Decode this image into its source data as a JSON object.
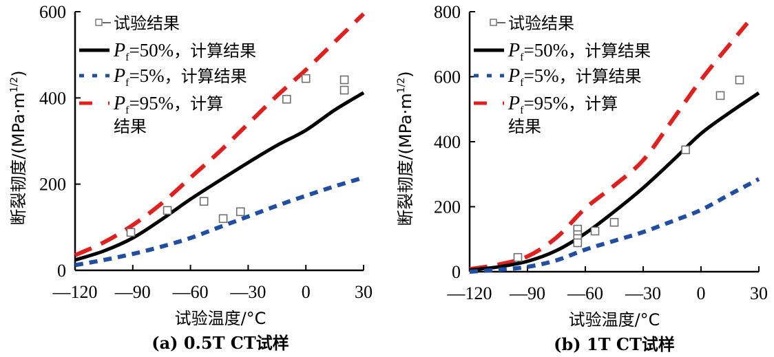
{
  "colors": {
    "p50": "#000000",
    "p5": "#1f4ea3",
    "p95": "#e0201e",
    "marker": "#6e6e6e"
  },
  "chart_data": [
    {
      "type": "line",
      "panel": "a",
      "caption": "(a) 0.5T CT试样",
      "xlabel": "试验温度/°C",
      "ylabel": "断裂韧度/(MPa·m",
      "ylabel_sup": "1/2",
      "ylabel_close": ")",
      "xlim": [
        -120,
        30
      ],
      "ylim": [
        0,
        600
      ],
      "xticks": [
        -120,
        -90,
        -60,
        -30,
        0,
        30
      ],
      "xtick_labels": [
        "—120",
        "—90",
        "—60",
        "—30",
        "0",
        "30"
      ],
      "yticks": [
        0,
        200,
        400,
        600
      ],
      "ytick_labels": [
        "0",
        "200",
        "400",
        "600"
      ],
      "grid": false,
      "legend_position": "top-left",
      "legend": [
        {
          "key": "test",
          "text": "试验结果"
        },
        {
          "key": "p50",
          "prefix": "P",
          "sub": "f",
          "value": "=50%",
          "text": "，计算结果"
        },
        {
          "key": "p5",
          "prefix": "P",
          "sub": "f",
          "value": "=5%",
          "text": "，计算结果"
        },
        {
          "key": "p95",
          "prefix": "P",
          "sub": "f",
          "value": "=95%",
          "text": "，计算",
          "text2": "结果"
        }
      ],
      "series": [
        {
          "key": "p95",
          "name": "Pf=95%，计算结果",
          "style": "dashed",
          "x": [
            -120,
            -105,
            -90,
            -75,
            -60,
            -45,
            -30,
            -15,
            0,
            15,
            30
          ],
          "y": [
            35,
            65,
            105,
            155,
            215,
            275,
            340,
            405,
            465,
            530,
            595
          ]
        },
        {
          "key": "p50",
          "name": "Pf=50%，计算结果",
          "style": "solid",
          "x": [
            -120,
            -105,
            -90,
            -75,
            -60,
            -45,
            -30,
            -15,
            0,
            15,
            30
          ],
          "y": [
            24,
            45,
            75,
            118,
            165,
            208,
            250,
            290,
            325,
            372,
            412
          ]
        },
        {
          "key": "p5",
          "name": "Pf=5%，计算结果",
          "style": "dotted",
          "x": [
            -120,
            -105,
            -90,
            -75,
            -60,
            -45,
            -30,
            -15,
            0,
            15,
            30
          ],
          "y": [
            12,
            24,
            38,
            55,
            75,
            100,
            125,
            150,
            173,
            195,
            215
          ]
        },
        {
          "key": "test",
          "name": "试验结果",
          "style": "markers",
          "x": [
            -91,
            -72,
            -53,
            -43,
            -34,
            -10,
            0,
            20,
            20
          ],
          "y": [
            88,
            139,
            160,
            120,
            136,
            397,
            445,
            442,
            418
          ]
        }
      ]
    },
    {
      "type": "line",
      "panel": "b",
      "caption": "(b) 1T CT试样",
      "xlabel": "试验温度/°C",
      "ylabel": "断裂韧度/(MPa·m",
      "ylabel_sup": "1/2",
      "ylabel_close": ")",
      "xlim": [
        -120,
        30
      ],
      "ylim": [
        0,
        800
      ],
      "xticks": [
        -120,
        -90,
        -60,
        -30,
        0,
        30
      ],
      "xtick_labels": [
        "—120",
        "—90",
        "—60",
        "—30",
        "0",
        "30"
      ],
      "yticks": [
        0,
        200,
        400,
        600,
        800
      ],
      "ytick_labels": [
        "0",
        "200",
        "400",
        "600",
        "800"
      ],
      "grid": false,
      "legend_position": "top-left",
      "legend": [
        {
          "key": "test",
          "text": "试验结果"
        },
        {
          "key": "p50",
          "prefix": "P",
          "sub": "f",
          "value": "=50%",
          "text": "，计算结果"
        },
        {
          "key": "p5",
          "prefix": "P",
          "sub": "f",
          "value": "=5%",
          "text": "，计算结果"
        },
        {
          "key": "p95",
          "prefix": "P",
          "sub": "f",
          "value": "=95%",
          "text": "，计算",
          "text2": "结果"
        }
      ],
      "series": [
        {
          "key": "p95",
          "name": "Pf=95%，计算结果",
          "style": "dashed",
          "x": [
            -120,
            -105,
            -90,
            -75,
            -60,
            -45,
            -30,
            -15,
            0,
            15,
            24
          ],
          "y": [
            8,
            22,
            47,
            105,
            195,
            265,
            343,
            465,
            590,
            700,
            765
          ]
        },
        {
          "key": "p50",
          "name": "Pf=50%，计算结果",
          "style": "solid",
          "x": [
            -120,
            -105,
            -90,
            -75,
            -60,
            -45,
            -30,
            -15,
            0,
            15,
            30
          ],
          "y": [
            5,
            15,
            32,
            65,
            118,
            185,
            258,
            340,
            425,
            490,
            550
          ]
        },
        {
          "key": "p5",
          "name": "Pf=5%，计算结果",
          "style": "dotted",
          "x": [
            -120,
            -105,
            -90,
            -75,
            -60,
            -45,
            -30,
            -15,
            0,
            15,
            30
          ],
          "y": [
            0,
            6,
            15,
            35,
            68,
            95,
            122,
            155,
            190,
            238,
            285
          ]
        },
        {
          "key": "test",
          "name": "试验结果",
          "style": "markers",
          "x": [
            -95,
            -64,
            -64,
            -64,
            -64,
            -55,
            -45,
            -8,
            10,
            20
          ],
          "y": [
            44,
            131,
            114,
            102,
            89,
            125,
            152,
            375,
            542,
            590
          ]
        }
      ]
    }
  ]
}
